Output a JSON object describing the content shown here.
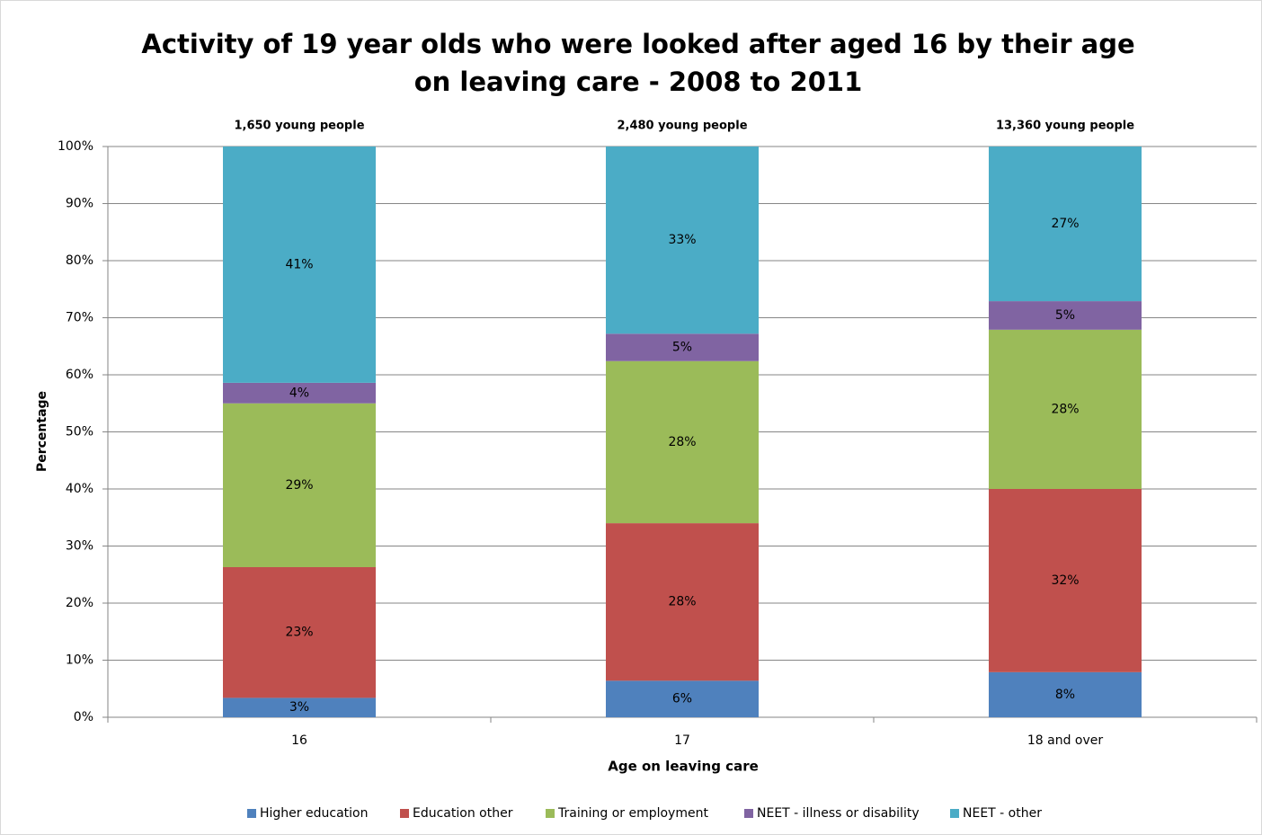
{
  "chart_data": {
    "type": "stacked_bar",
    "title": "Activity of 19 year olds who were looked after aged 16 by their age on leaving care - 2008 to 2011",
    "x_label": "Age on leaving care",
    "y_label": "Percentage",
    "categories": [
      "16",
      "17",
      "18 and over"
    ],
    "annotations": [
      "1,650 young people",
      "2,480 young people",
      "13,360 young people"
    ],
    "annotation_color": "#558ed5",
    "series": [
      {
        "name": "Higher education",
        "color": "#4f81bd",
        "values": [
          3.4,
          6.4,
          7.9
        ],
        "value_labels": [
          "3%",
          "6%",
          "8%"
        ]
      },
      {
        "name": "Education other",
        "color": "#c0504d",
        "values": [
          22.9,
          27.6,
          32.1
        ],
        "value_labels": [
          "23%",
          "28%",
          "32%"
        ]
      },
      {
        "name": "Training or employment",
        "color": "#9bbb59",
        "values": [
          28.7,
          28.4,
          27.9
        ],
        "value_labels": [
          "29%",
          "28%",
          "28%"
        ]
      },
      {
        "name": "NEET - illness or disability",
        "color": "#8064a2",
        "values": [
          3.6,
          4.8,
          5.0
        ],
        "value_labels": [
          "4%",
          "5%",
          "5%"
        ]
      },
      {
        "name": "NEET - other",
        "color": "#4bacc6",
        "values": [
          41.4,
          32.8,
          27.1
        ],
        "value_labels": [
          "41%",
          "33%",
          "27%"
        ]
      }
    ],
    "ylim": [
      0,
      100
    ],
    "yticks": [
      {
        "value": 0,
        "label": "0%"
      },
      {
        "value": 10,
        "label": "10%"
      },
      {
        "value": 20,
        "label": "20%"
      },
      {
        "value": 30,
        "label": "30%"
      },
      {
        "value": 40,
        "label": "40%"
      },
      {
        "value": 50,
        "label": "50%"
      },
      {
        "value": 60,
        "label": "60%"
      },
      {
        "value": 70,
        "label": "70%"
      },
      {
        "value": 80,
        "label": "80%"
      },
      {
        "value": 90,
        "label": "90%"
      },
      {
        "value": 100,
        "label": "100%"
      }
    ],
    "grid": true,
    "legend": "bottom"
  }
}
